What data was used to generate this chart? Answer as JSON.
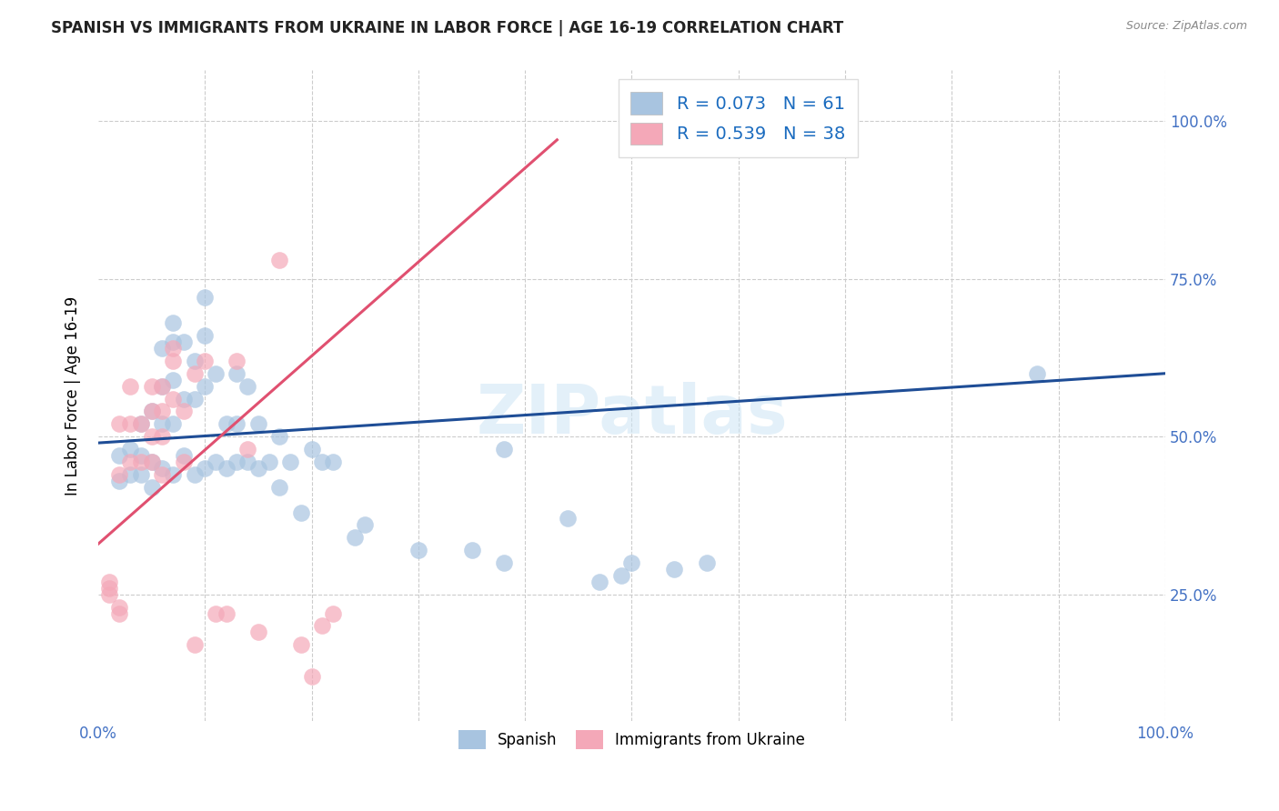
{
  "title": "SPANISH VS IMMIGRANTS FROM UKRAINE IN LABOR FORCE | AGE 16-19 CORRELATION CHART",
  "source": "Source: ZipAtlas.com",
  "ylabel": "In Labor Force | Age 16-19",
  "xlim": [
    0,
    1
  ],
  "ylim": [
    0.05,
    1.08
  ],
  "blue_R": "0.073",
  "blue_N": "61",
  "pink_R": "0.539",
  "pink_N": "38",
  "blue_color": "#a8c4e0",
  "pink_color": "#f4a8b8",
  "blue_line_color": "#1e4d96",
  "pink_line_color": "#e05070",
  "legend_R_color": "#1a6bbf",
  "watermark": "ZIPatlas",
  "blue_x": [
    0.02,
    0.02,
    0.03,
    0.03,
    0.04,
    0.04,
    0.04,
    0.05,
    0.05,
    0.05,
    0.06,
    0.06,
    0.06,
    0.06,
    0.07,
    0.07,
    0.07,
    0.07,
    0.07,
    0.08,
    0.08,
    0.08,
    0.09,
    0.09,
    0.09,
    0.1,
    0.1,
    0.1,
    0.1,
    0.11,
    0.11,
    0.12,
    0.12,
    0.13,
    0.13,
    0.13,
    0.14,
    0.14,
    0.15,
    0.15,
    0.16,
    0.17,
    0.17,
    0.18,
    0.19,
    0.2,
    0.21,
    0.22,
    0.24,
    0.25,
    0.3,
    0.35,
    0.38,
    0.38,
    0.44,
    0.47,
    0.49,
    0.5,
    0.54,
    0.57,
    0.88
  ],
  "blue_y": [
    0.43,
    0.47,
    0.44,
    0.48,
    0.44,
    0.47,
    0.52,
    0.42,
    0.46,
    0.54,
    0.45,
    0.52,
    0.58,
    0.64,
    0.44,
    0.52,
    0.59,
    0.65,
    0.68,
    0.47,
    0.56,
    0.65,
    0.44,
    0.56,
    0.62,
    0.45,
    0.58,
    0.66,
    0.72,
    0.46,
    0.6,
    0.45,
    0.52,
    0.46,
    0.52,
    0.6,
    0.46,
    0.58,
    0.45,
    0.52,
    0.46,
    0.42,
    0.5,
    0.46,
    0.38,
    0.48,
    0.46,
    0.46,
    0.34,
    0.36,
    0.32,
    0.32,
    0.3,
    0.48,
    0.37,
    0.27,
    0.28,
    0.3,
    0.29,
    0.3,
    0.6
  ],
  "pink_x": [
    0.01,
    0.01,
    0.01,
    0.02,
    0.02,
    0.02,
    0.02,
    0.03,
    0.03,
    0.03,
    0.04,
    0.04,
    0.05,
    0.05,
    0.05,
    0.05,
    0.06,
    0.06,
    0.06,
    0.06,
    0.07,
    0.07,
    0.07,
    0.08,
    0.08,
    0.09,
    0.09,
    0.1,
    0.11,
    0.12,
    0.13,
    0.14,
    0.15,
    0.17,
    0.19,
    0.2,
    0.21,
    0.22
  ],
  "pink_y": [
    0.25,
    0.26,
    0.27,
    0.22,
    0.23,
    0.44,
    0.52,
    0.46,
    0.52,
    0.58,
    0.46,
    0.52,
    0.46,
    0.5,
    0.54,
    0.58,
    0.44,
    0.5,
    0.54,
    0.58,
    0.56,
    0.62,
    0.64,
    0.46,
    0.54,
    0.17,
    0.6,
    0.62,
    0.22,
    0.22,
    0.62,
    0.48,
    0.19,
    0.78,
    0.17,
    0.12,
    0.2,
    0.22
  ],
  "blue_line_x": [
    0.0,
    1.0
  ],
  "blue_line_y": [
    0.49,
    0.6
  ],
  "pink_line_x": [
    0.0,
    0.43
  ],
  "pink_line_y": [
    0.33,
    0.97
  ]
}
